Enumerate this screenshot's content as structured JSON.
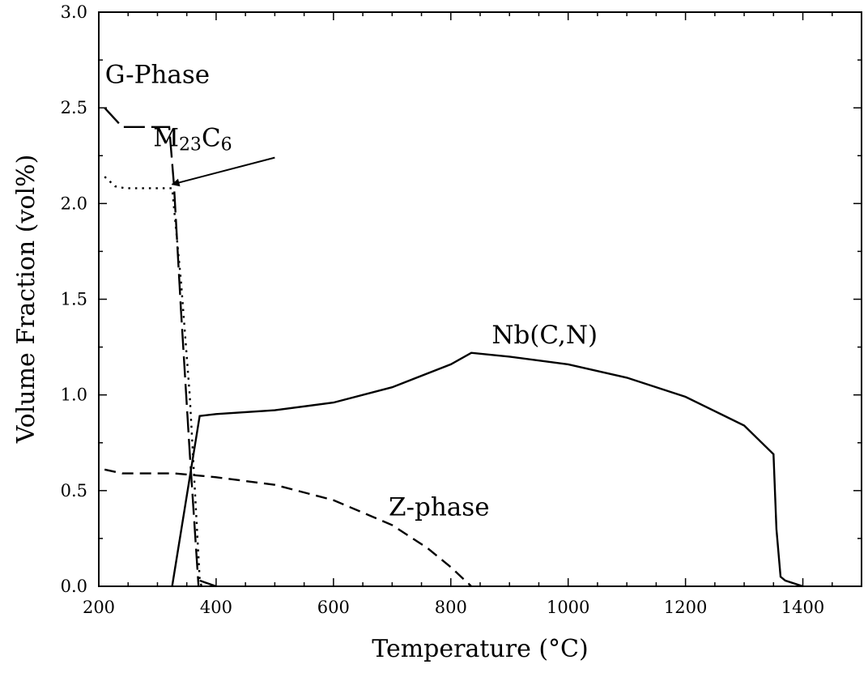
{
  "chart_data": {
    "type": "line",
    "xlabel": "Temperature (°C)",
    "ylabel": "Volume Fraction (vol%)",
    "xlim": [
      200,
      1500
    ],
    "ylim": [
      0,
      3.0
    ],
    "grid": false,
    "xticks": [
      200,
      400,
      600,
      800,
      1000,
      1200,
      1400
    ],
    "xtick_labels": [
      "200",
      "400",
      "600",
      "800",
      "1000",
      "1200",
      "1400"
    ],
    "yticks": [
      0,
      0.5,
      1.0,
      1.5,
      2.0,
      2.5,
      3.0
    ],
    "ytick_labels": [
      "0.0",
      "0.5",
      "1.0",
      "1.5",
      "2.0",
      "2.5",
      "3.0"
    ],
    "series": [
      {
        "name": "G-Phase",
        "style": "long-dash",
        "x": [
          210,
          225,
          240,
          320,
          328,
          340,
          355,
          370
        ],
        "y": [
          2.5,
          2.45,
          2.4,
          2.4,
          2.1,
          1.45,
          0.7,
          0.0
        ]
      },
      {
        "name": "M23C6",
        "style": "dotted",
        "x": [
          210,
          228,
          245,
          310,
          325,
          340,
          355,
          372,
          375
        ],
        "y": [
          2.14,
          2.09,
          2.08,
          2.08,
          2.08,
          1.6,
          1.0,
          0.04,
          0.0
        ]
      },
      {
        "name": "Nb(C,N)",
        "style": "solid",
        "x": [
          325,
          372,
          400,
          500,
          600,
          700,
          800,
          835,
          900,
          1000,
          1100,
          1200,
          1300,
          1350,
          1355,
          1362,
          1370,
          1400
        ],
        "y": [
          0.0,
          0.89,
          0.9,
          0.92,
          0.96,
          1.04,
          1.16,
          1.22,
          1.2,
          1.16,
          1.09,
          0.99,
          0.84,
          0.69,
          0.3,
          0.05,
          0.03,
          0.0
        ],
        "extra_segment": {
          "x": [
            372,
            400
          ],
          "y": [
            0.03,
            0.0
          ]
        }
      },
      {
        "name": "Z-phase",
        "style": "short-dash",
        "x": [
          210,
          240,
          330,
          400,
          500,
          600,
          700,
          760,
          800,
          835
        ],
        "y": [
          0.61,
          0.59,
          0.59,
          0.57,
          0.53,
          0.45,
          0.32,
          0.2,
          0.1,
          0.0
        ]
      }
    ],
    "annotations": [
      {
        "text": "G-Phase",
        "x": 300,
        "y": 2.63
      },
      {
        "text": "M",
        "sub": "23",
        "text2": "C",
        "sub2": "6",
        "x": 360,
        "y": 2.3
      },
      {
        "text": "Nb(C,N)",
        "x": 960,
        "y": 1.27
      },
      {
        "text": "Z-phase",
        "x": 780,
        "y": 0.37
      }
    ],
    "arrow": {
      "from": [
        500,
        2.24
      ],
      "to": [
        325,
        2.1
      ]
    }
  }
}
